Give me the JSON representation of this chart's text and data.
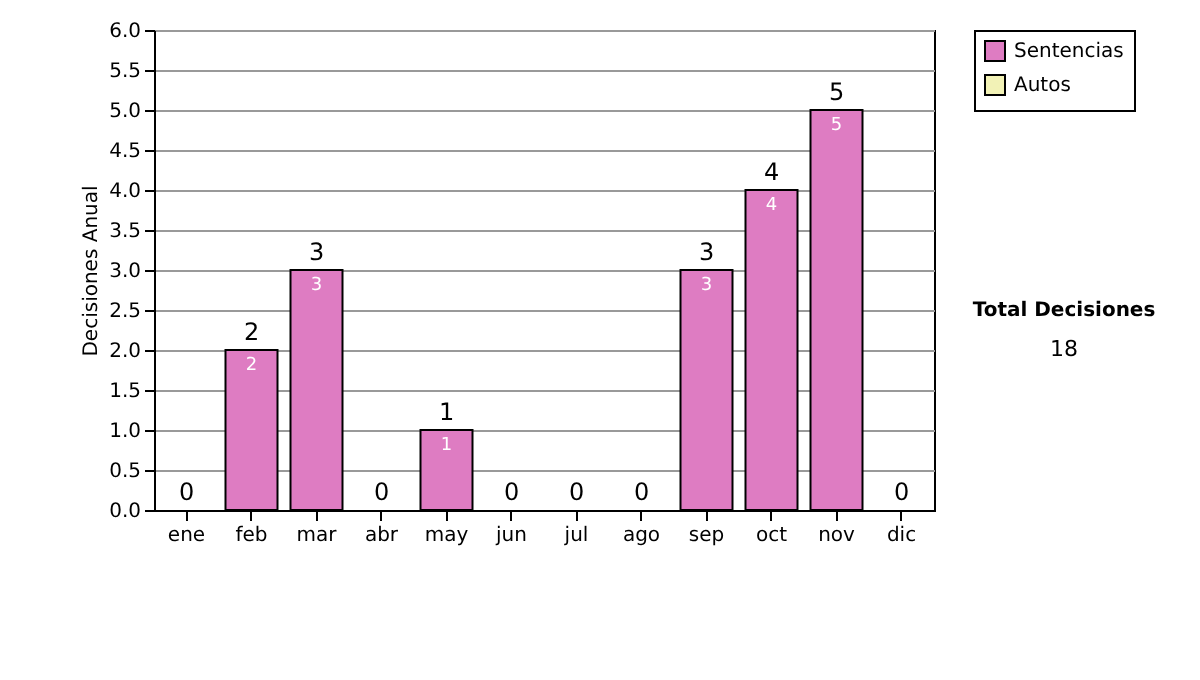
{
  "chart_data": {
    "type": "bar",
    "stacked": true,
    "ylabel": "Decisiones Anual",
    "categories": [
      "ene",
      "feb",
      "mar",
      "abr",
      "may",
      "jun",
      "jul",
      "ago",
      "sep",
      "oct",
      "nov",
      "dic"
    ],
    "series": [
      {
        "name": "Sentencias",
        "color": "#de7cc2",
        "values": [
          0,
          2,
          3,
          0,
          1,
          0,
          0,
          0,
          3,
          4,
          5,
          0
        ],
        "value_labels": [
          null,
          "2",
          "3",
          null,
          "1",
          null,
          null,
          null,
          "3",
          "4",
          "5",
          null
        ]
      },
      {
        "name": "Autos",
        "color": "#f2f2b6",
        "values": [
          0,
          0,
          0,
          0,
          0,
          0,
          0,
          0,
          0,
          0,
          0,
          0
        ]
      }
    ],
    "totals": [
      "0",
      "2",
      "3",
      "0",
      "1",
      "0",
      "0",
      "0",
      "3",
      "4",
      "5",
      "0"
    ],
    "ylim": [
      0,
      6
    ],
    "yticks": [
      {
        "value": 0,
        "label": "0.0"
      },
      {
        "value": 0.5,
        "label": "0.5"
      },
      {
        "value": 1,
        "label": "1.0"
      },
      {
        "value": 1.5,
        "label": "1.5"
      },
      {
        "value": 2,
        "label": "2.0"
      },
      {
        "value": 2.5,
        "label": "2.5"
      },
      {
        "value": 3,
        "label": "3.0"
      },
      {
        "value": 3.5,
        "label": "3.5"
      },
      {
        "value": 4,
        "label": "4.0"
      },
      {
        "value": 4.5,
        "label": "4.5"
      },
      {
        "value": 5,
        "label": "5.0"
      },
      {
        "value": 5.5,
        "label": "5.5"
      },
      {
        "value": 6,
        "label": "6.0"
      }
    ],
    "grid": "y",
    "legend": "right",
    "annotations": [
      "Total Decisiones",
      "18"
    ]
  }
}
